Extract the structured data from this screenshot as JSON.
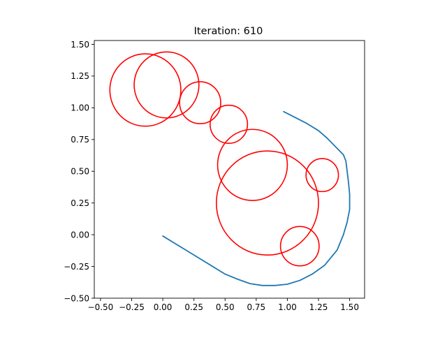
{
  "chart_data": {
    "type": "scatter",
    "title": "Iteration: 610",
    "xlabel": "",
    "ylabel": "",
    "xlim": [
      -0.55,
      1.62
    ],
    "ylim": [
      -0.5,
      1.53
    ],
    "x_ticks": [
      -0.5,
      -0.25,
      0.0,
      0.25,
      0.5,
      0.75,
      1.0,
      1.25,
      1.5
    ],
    "x_tick_labels": [
      "−0.50",
      "−0.25",
      "0.00",
      "0.25",
      "0.50",
      "0.75",
      "1.00",
      "1.25",
      "1.50"
    ],
    "y_ticks": [
      -0.5,
      -0.25,
      0.0,
      0.25,
      0.5,
      0.75,
      1.0,
      1.25,
      1.5
    ],
    "y_tick_labels": [
      "−0.50",
      "−0.25",
      "0.00",
      "0.25",
      "0.50",
      "0.75",
      "1.00",
      "1.25",
      "1.50"
    ],
    "grid": false,
    "legend": "none",
    "series": [
      {
        "kind": "line",
        "color": "#1f77b4",
        "points": [
          [
            0.0,
            -0.01
          ],
          [
            0.1,
            -0.07
          ],
          [
            0.2,
            -0.13
          ],
          [
            0.3,
            -0.19
          ],
          [
            0.4,
            -0.25
          ],
          [
            0.5,
            -0.31
          ],
          [
            0.6,
            -0.35
          ],
          [
            0.7,
            -0.385
          ],
          [
            0.8,
            -0.4
          ],
          [
            0.9,
            -0.4
          ],
          [
            1.0,
            -0.39
          ],
          [
            1.1,
            -0.36
          ],
          [
            1.2,
            -0.31
          ],
          [
            1.3,
            -0.24
          ],
          [
            1.4,
            -0.12
          ],
          [
            1.45,
            0.0
          ],
          [
            1.48,
            0.1
          ],
          [
            1.5,
            0.2
          ],
          [
            1.5,
            0.32
          ],
          [
            1.49,
            0.42
          ],
          [
            1.48,
            0.5
          ],
          [
            1.47,
            0.58
          ],
          [
            1.45,
            0.63
          ],
          [
            1.42,
            0.66
          ],
          [
            1.38,
            0.7
          ],
          [
            1.32,
            0.76
          ],
          [
            1.25,
            0.82
          ],
          [
            1.15,
            0.88
          ],
          [
            1.05,
            0.93
          ],
          [
            0.97,
            0.97
          ]
        ]
      },
      {
        "kind": "circles",
        "color": "#ff0000",
        "circles": [
          {
            "cx": -0.14,
            "cy": 1.14,
            "r": 0.285
          },
          {
            "cx": 0.03,
            "cy": 1.18,
            "r": 0.26
          },
          {
            "cx": 0.3,
            "cy": 1.04,
            "r": 0.165
          },
          {
            "cx": 0.53,
            "cy": 0.87,
            "r": 0.15
          },
          {
            "cx": 0.72,
            "cy": 0.55,
            "r": 0.28
          },
          {
            "cx": 0.84,
            "cy": 0.25,
            "r": 0.41
          },
          {
            "cx": 1.28,
            "cy": 0.47,
            "r": 0.13
          },
          {
            "cx": 1.1,
            "cy": -0.09,
            "r": 0.155
          }
        ]
      }
    ]
  }
}
